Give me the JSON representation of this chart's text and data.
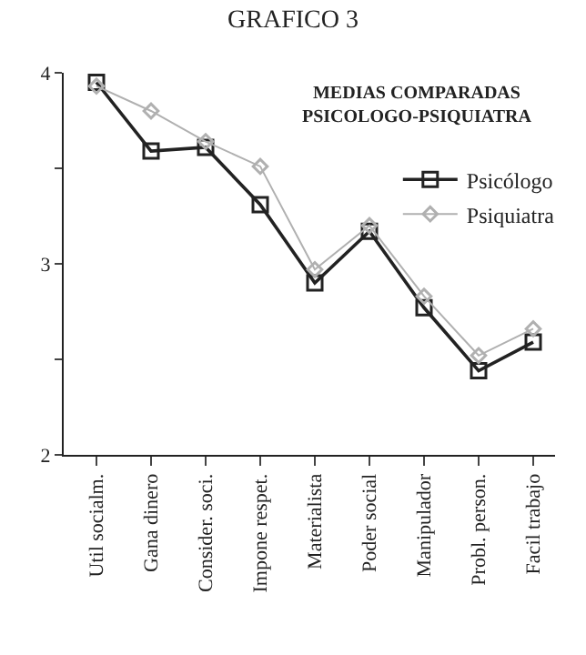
{
  "chart_data": {
    "type": "line",
    "title": "GRAFICO 3",
    "subtitle": "MEDIAS COMPARADAS\nPSICOLOGO-PSIQUIATRA",
    "categories": [
      "Util socialm.",
      "Gana dinero",
      "Consider. soci.",
      "Impone respet.",
      "Materialista",
      "Poder social",
      "Manipulador",
      "Probl. person.",
      "Facil trabajo"
    ],
    "series": [
      {
        "name": "Psicólogo",
        "color": "#222222",
        "marker": "square",
        "values": [
          3.95,
          3.59,
          3.61,
          3.31,
          2.9,
          3.17,
          2.77,
          2.44,
          2.59
        ]
      },
      {
        "name": "Psiquiatra",
        "color": "#b0b0b0",
        "marker": "diamond",
        "values": [
          3.93,
          3.8,
          3.64,
          3.51,
          2.97,
          3.2,
          2.83,
          2.52,
          2.66
        ]
      }
    ],
    "ylim": [
      2,
      4
    ],
    "yticks": [
      2,
      {
        "value": 2.5,
        "label": null
      },
      3,
      {
        "value": 3.5,
        "label": null
      },
      4
    ],
    "grid": false,
    "legend": "top right",
    "line_style": "solid"
  }
}
